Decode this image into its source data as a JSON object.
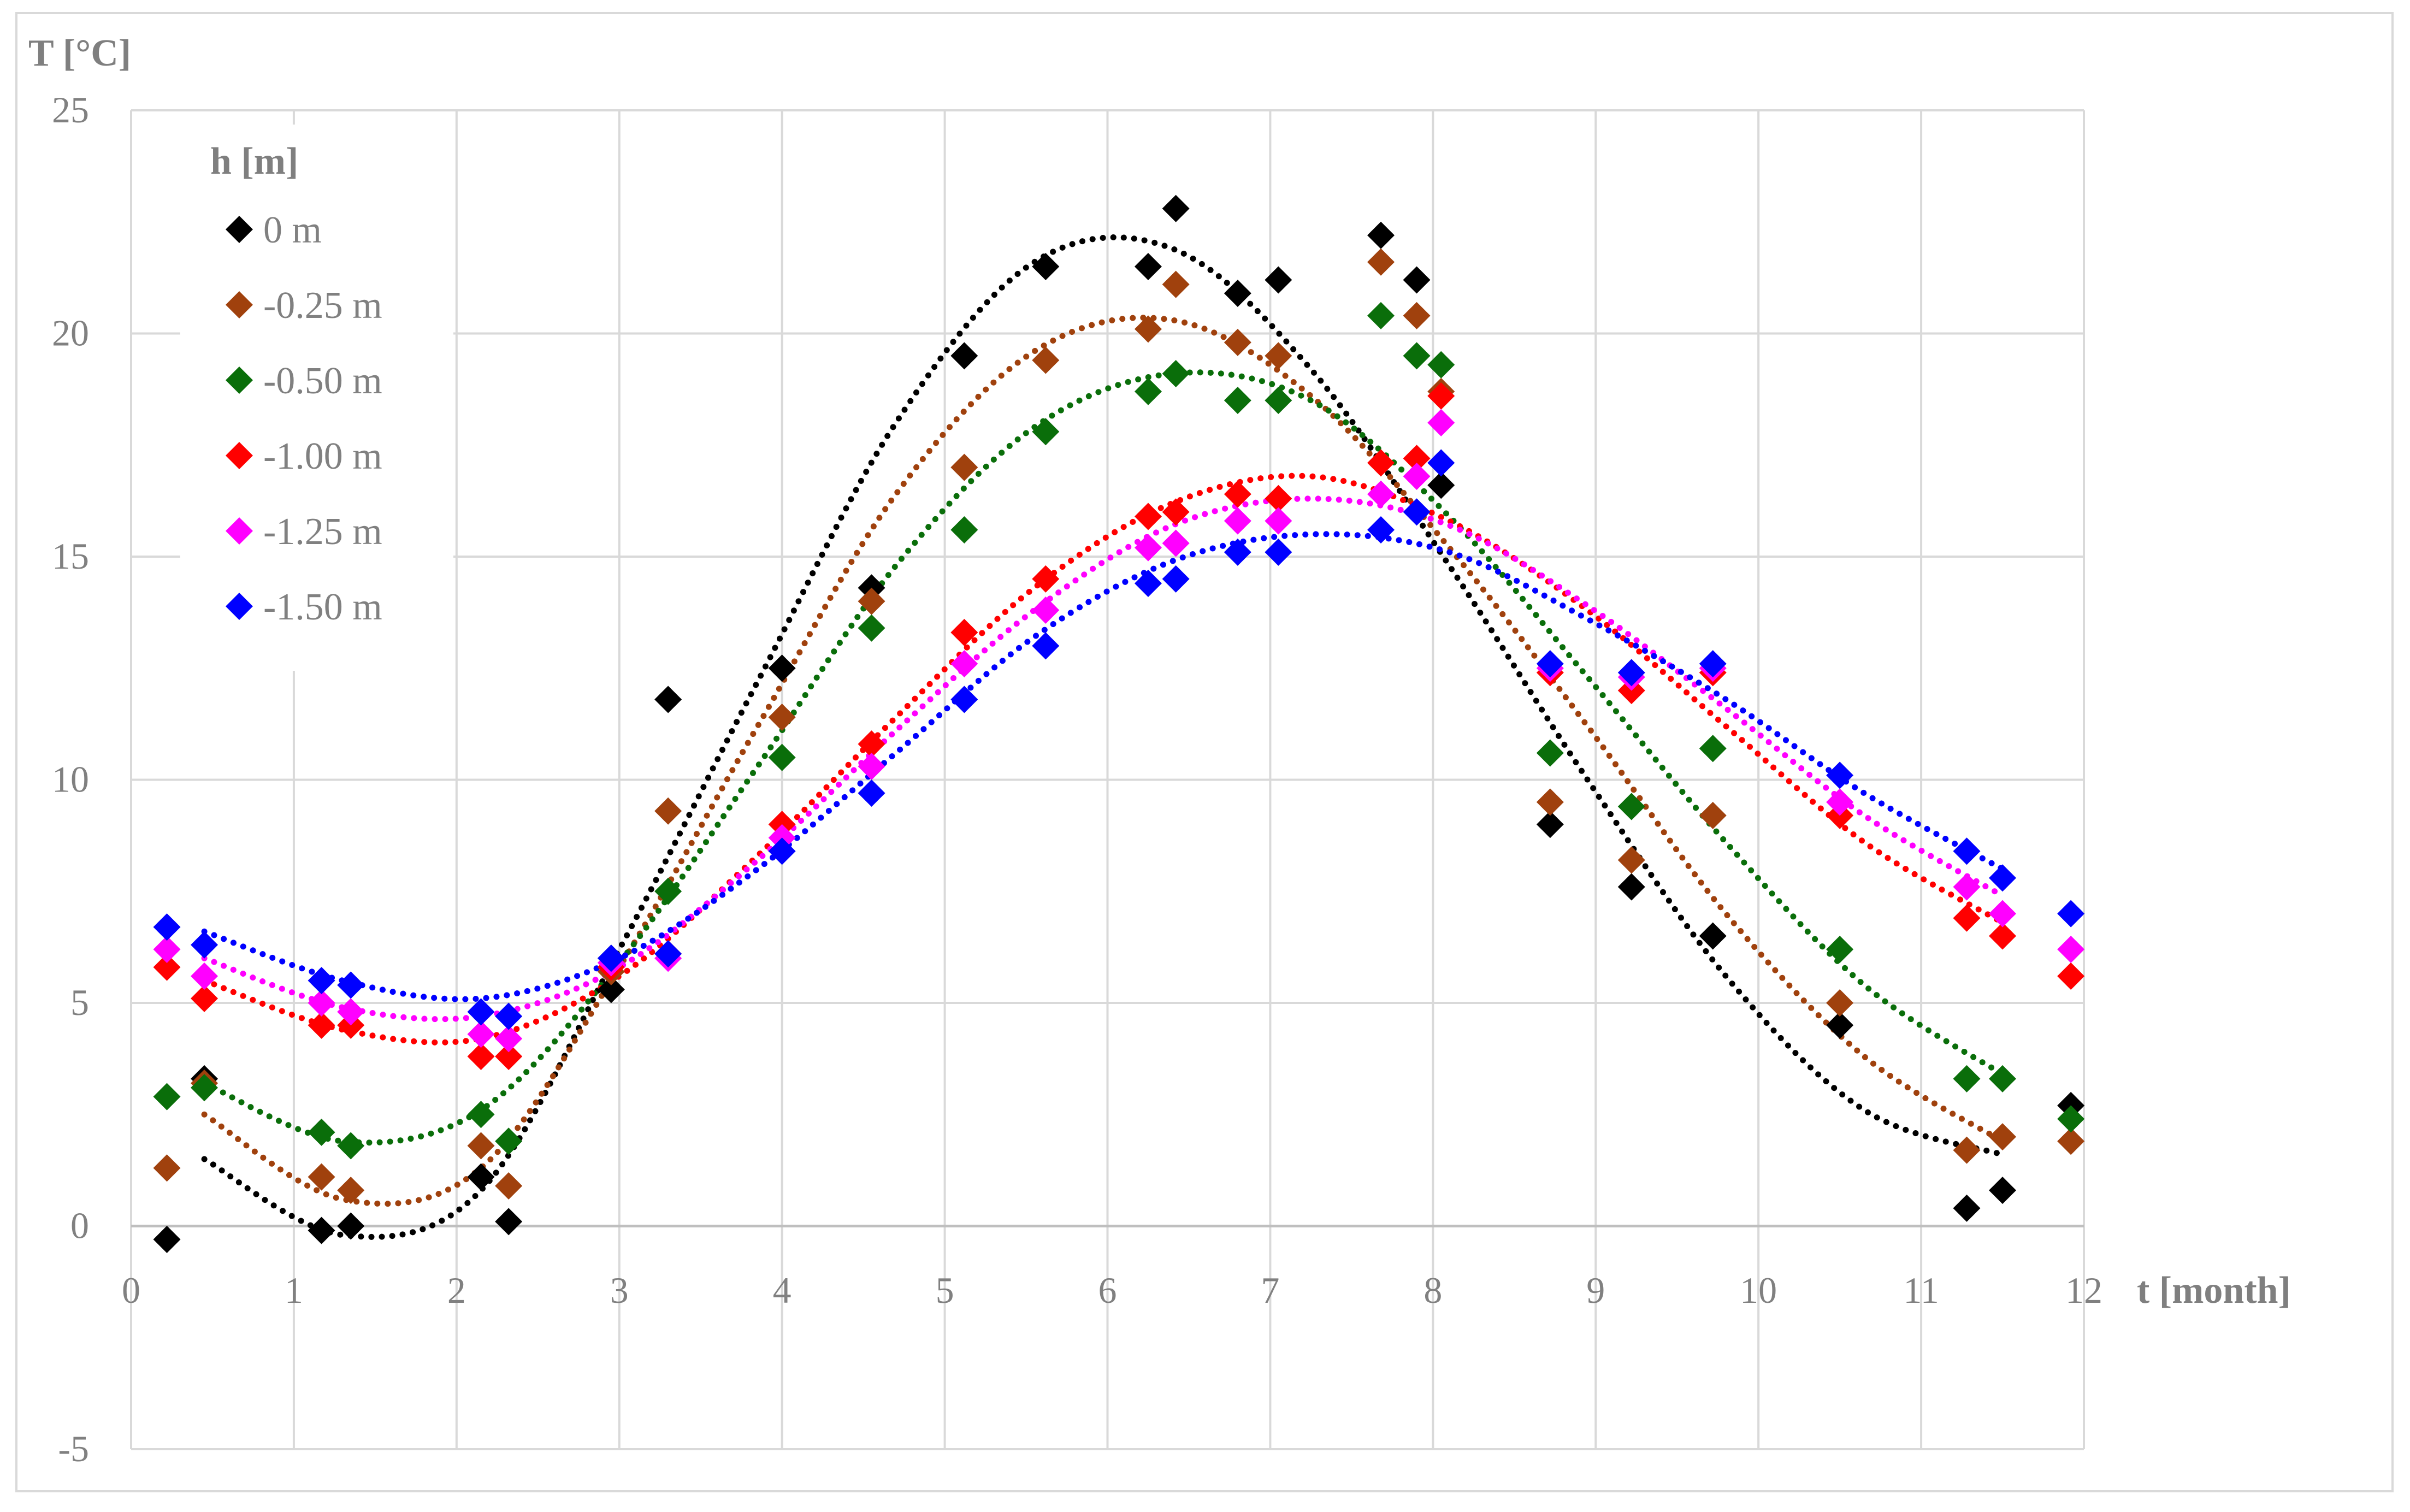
{
  "chart_data": {
    "type": "scatter",
    "ylabel": "T [°C]",
    "xlabel": "t [month]",
    "xlim": [
      0,
      12
    ],
    "ylim": [
      -5,
      25
    ],
    "x_ticks": [
      0,
      1,
      2,
      3,
      4,
      5,
      6,
      7,
      8,
      9,
      10,
      11,
      12
    ],
    "y_ticks": [
      -5,
      0,
      5,
      10,
      15,
      20,
      25
    ],
    "grid": true,
    "legend": {
      "title": "h [m]",
      "position": "top-left"
    },
    "x": [
      0.22,
      0.45,
      1.17,
      1.35,
      2.15,
      2.32,
      2.95,
      3.3,
      4.0,
      4.55,
      5.12,
      5.62,
      6.25,
      6.42,
      6.8,
      7.05,
      7.68,
      7.9,
      8.05,
      8.72,
      9.22,
      9.72,
      10.5,
      11.28,
      11.5,
      11.92
    ],
    "series": [
      {
        "name": "0 m",
        "color": "#000000",
        "values": [
          -0.3,
          3.3,
          -0.1,
          0.0,
          1.1,
          0.1,
          5.3,
          11.8,
          12.5,
          14.3,
          19.5,
          21.5,
          21.5,
          22.8,
          20.9,
          21.2,
          22.2,
          21.2,
          16.6,
          9.0,
          7.6,
          6.5,
          4.5,
          0.4,
          0.8,
          2.7
        ]
      },
      {
        "name": "-0.25 m",
        "color": "#a0410d",
        "values": [
          1.3,
          3.2,
          1.1,
          0.8,
          1.8,
          0.9,
          5.7,
          9.3,
          11.4,
          14.0,
          17.0,
          19.4,
          20.1,
          21.1,
          19.8,
          19.5,
          21.6,
          20.4,
          18.7,
          9.5,
          8.2,
          9.2,
          5.0,
          1.7,
          2.0,
          1.9
        ]
      },
      {
        "name": "-0.50 m",
        "color": "#0a6e0a",
        "values": [
          2.9,
          3.1,
          2.1,
          1.8,
          2.5,
          1.9,
          6.0,
          7.5,
          10.5,
          13.4,
          15.6,
          17.8,
          18.7,
          19.1,
          18.5,
          18.5,
          20.4,
          19.5,
          19.3,
          10.6,
          9.4,
          10.7,
          6.2,
          3.3,
          3.3,
          2.4
        ]
      },
      {
        "name": "-1.00 m",
        "color": "#ff0000",
        "values": [
          5.8,
          5.1,
          4.5,
          4.5,
          3.8,
          3.8,
          5.8,
          6.1,
          9.0,
          10.8,
          13.3,
          14.5,
          15.9,
          16.0,
          16.4,
          16.3,
          17.1,
          17.2,
          18.6,
          12.4,
          12.0,
          12.4,
          9.2,
          6.9,
          6.5,
          5.6
        ]
      },
      {
        "name": "-1.25 m",
        "color": "#ff00ff",
        "values": [
          6.2,
          5.6,
          5.0,
          4.8,
          4.3,
          4.2,
          5.9,
          6.0,
          8.7,
          10.3,
          12.6,
          13.8,
          15.2,
          15.3,
          15.8,
          15.8,
          16.4,
          16.8,
          18.0,
          12.5,
          12.3,
          12.5,
          9.5,
          7.6,
          7.0,
          6.2
        ]
      },
      {
        "name": "-1.50 m",
        "color": "#0000ff",
        "values": [
          6.7,
          6.3,
          5.5,
          5.4,
          4.8,
          4.7,
          6.0,
          6.1,
          8.4,
          9.7,
          11.8,
          13.0,
          14.4,
          14.5,
          15.1,
          15.1,
          15.6,
          16.0,
          17.1,
          12.6,
          12.4,
          12.6,
          10.1,
          8.4,
          7.8,
          7.0
        ]
      }
    ],
    "trendlines": [
      {
        "name": "0 m",
        "color": "#000000",
        "x_range": [
          0.45,
          11.5
        ],
        "values": [
          1.5,
          -0.2,
          0.8,
          6.2,
          12.2,
          18.0,
          21.6,
          21.9,
          19.2,
          14.8,
          10.0,
          5.6,
          2.6,
          1.6
        ]
      },
      {
        "name": "-0.25 m",
        "color": "#a0410d",
        "x_range": [
          0.45,
          11.5
        ],
        "values": [
          2.5,
          0.6,
          1.3,
          5.8,
          11.2,
          16.4,
          19.6,
          20.3,
          18.6,
          15.2,
          11.2,
          7.0,
          3.8,
          1.9
        ]
      },
      {
        "name": "-0.50 m",
        "color": "#0a6e0a",
        "x_range": [
          0.45,
          11.5
        ],
        "values": [
          3.2,
          1.9,
          2.6,
          5.9,
          10.3,
          14.8,
          17.9,
          19.1,
          18.5,
          15.9,
          12.3,
          8.6,
          5.4,
          3.4
        ]
      },
      {
        "name": "-1.00 m",
        "color": "#ff0000",
        "x_range": [
          0.45,
          11.5
        ],
        "values": [
          5.5,
          4.4,
          4.2,
          5.6,
          8.3,
          11.4,
          14.3,
          16.2,
          16.8,
          15.8,
          13.8,
          11.2,
          8.6,
          6.8
        ]
      },
      {
        "name": "-1.25 m",
        "color": "#ff00ff",
        "x_range": [
          0.45,
          11.5
        ],
        "values": [
          6.0,
          4.9,
          4.7,
          5.8,
          8.2,
          11.1,
          13.8,
          15.7,
          16.3,
          15.7,
          13.9,
          11.6,
          9.2,
          7.4
        ]
      },
      {
        "name": "-1.50 m",
        "color": "#0000ff",
        "x_range": [
          0.45,
          11.5
        ],
        "values": [
          6.6,
          5.5,
          5.1,
          6.0,
          8.0,
          10.6,
          13.2,
          14.9,
          15.5,
          15.1,
          13.6,
          11.8,
          9.7,
          8.0
        ]
      }
    ]
  }
}
